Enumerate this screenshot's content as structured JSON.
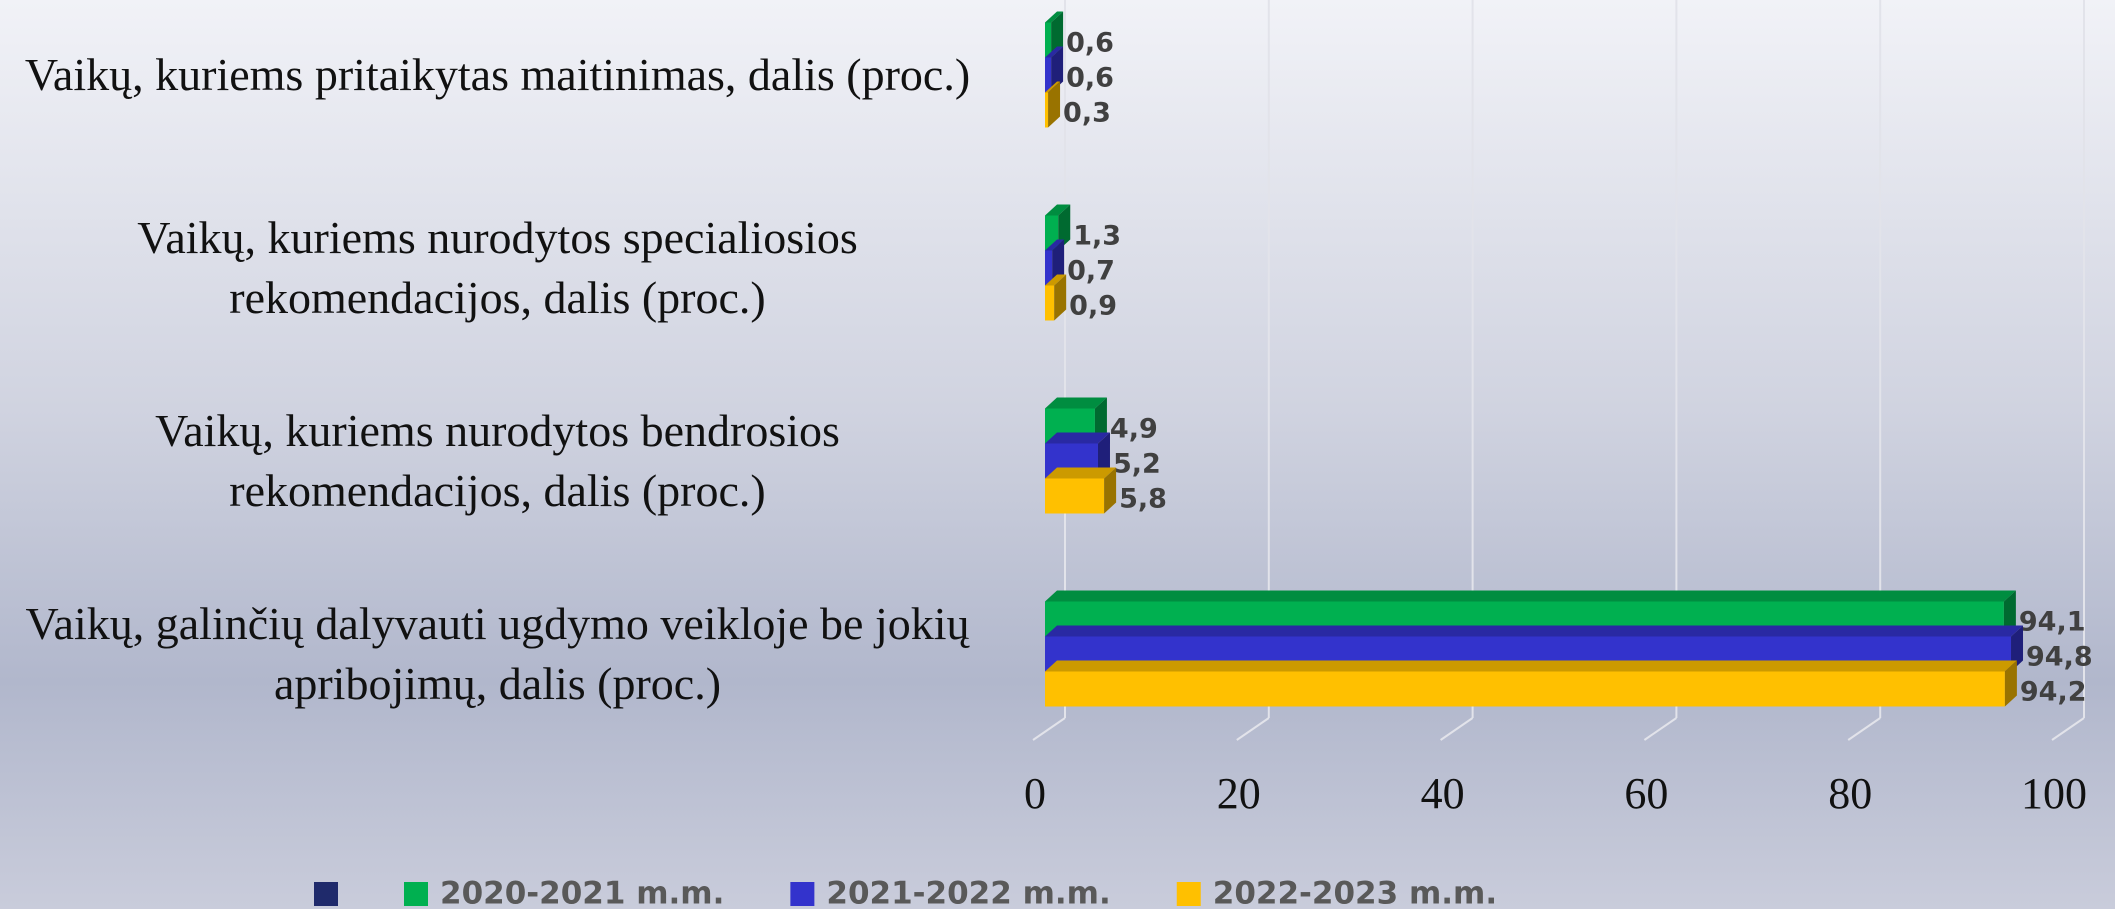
{
  "chart_data": {
    "type": "bar3d-horizontal",
    "categories": [
      "Vaikų, kuriems pritaikytas maitinimas, dalis (proc.)",
      "Vaikų, kuriems nurodytos specialiosios rekomendacijos, dalis (proc.)",
      "Vaikų, kuriems nurodytos bendrosios rekomendacijos, dalis (proc.)",
      "Vaikų, galinčių dalyvauti ugdymo veikloje be jokių apribojimų, dalis (proc.)"
    ],
    "series": [
      {
        "name": null,
        "color": "#1f2a6b",
        "values": [
          null,
          null,
          null,
          null
        ]
      },
      {
        "name": "2020-2021 m.m.",
        "color": "#00b050",
        "values": [
          0.6,
          1.3,
          4.9,
          94.1
        ],
        "value_labels": [
          "0,6",
          "1,3",
          "4,9",
          "94,1"
        ]
      },
      {
        "name": "2021-2022 m.m.",
        "color": "#3333cc",
        "values": [
          0.6,
          0.7,
          5.2,
          94.8
        ],
        "value_labels": [
          "0,6",
          "0,7",
          "5,2",
          "94,8"
        ]
      },
      {
        "name": "2022-2023 m.m.",
        "color": "#ffc000",
        "values": [
          0.3,
          0.9,
          5.8,
          94.2
        ],
        "value_labels": [
          "0,3",
          "0,9",
          "5,8",
          "94,2"
        ]
      }
    ],
    "xlim": [
      0,
      100
    ],
    "xticks": [
      0,
      20,
      40,
      60,
      80,
      100
    ],
    "grid": true,
    "legend": "bottom"
  }
}
